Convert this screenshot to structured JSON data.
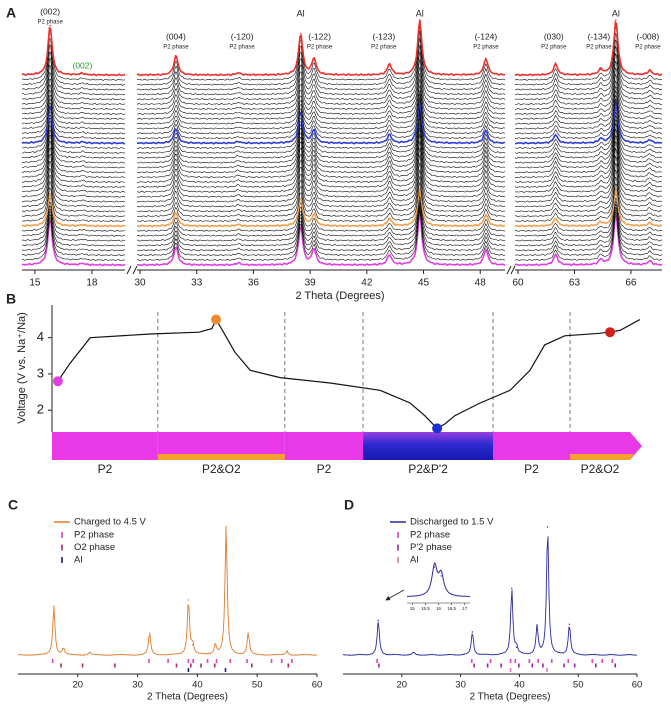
{
  "chart_data": [
    {
      "type": "waterfall",
      "label": "A",
      "xlabel": "2 Theta (Degrees)",
      "segments": [
        {
          "xlim": [
            14.32,
            19.74
          ],
          "xticks": [
            15,
            18
          ]
        },
        {
          "xlim": [
            29.84,
            49.31
          ],
          "xticks": [
            30,
            33,
            36,
            39,
            42,
            45,
            48
          ]
        },
        {
          "xlim": [
            59.84,
            67.65
          ],
          "xticks": [
            60,
            63,
            66
          ]
        }
      ],
      "peaks": {
        "x": [
          15.8,
          17.5,
          31.9,
          35.2,
          38.5,
          39.2,
          43.2,
          44.8,
          48.3,
          62.0,
          64.4,
          65.2,
          67.0
        ],
        "values": [
          0.9,
          0.03,
          0.35,
          0.04,
          0.75,
          0.3,
          0.2,
          1.0,
          0.3,
          0.2,
          0.1,
          1.0,
          0.08
        ]
      },
      "scan_count": 40,
      "highlights": [
        {
          "index": 0,
          "color": "#e8322e"
        },
        {
          "index": 14,
          "color": "#2f3fd6"
        },
        {
          "index": 31,
          "color": "#f0a050"
        },
        {
          "index": 39,
          "color": "#e040e0"
        }
      ],
      "peak_labels": [
        {
          "x": 15.8,
          "text": "(002)",
          "sub": "P2 phase"
        },
        {
          "x": 31.9,
          "text": "(004)",
          "sub": "P2 phase"
        },
        {
          "x": 35.4,
          "text": "(-120)",
          "sub": "P2 phase"
        },
        {
          "x": 39.5,
          "text": "(-122)",
          "sub": "P2 phase"
        },
        {
          "x": 42.9,
          "text": "(-123)",
          "sub": "P2 phase"
        },
        {
          "x": 48.3,
          "text": "(-124)",
          "sub": "P2 phase"
        },
        {
          "x": 61.9,
          "text": "(030)",
          "sub": "P2 phase"
        },
        {
          "x": 64.3,
          "text": "(-134)",
          "sub": "P2 phase"
        },
        {
          "x": 66.9,
          "text": "(-008)",
          "sub": "P2 phase"
        }
      ],
      "al_labels": [
        {
          "x": 38.5,
          "text": "Al"
        },
        {
          "x": 44.8,
          "text": "Al"
        },
        {
          "x": 65.2,
          "text": "Al"
        }
      ],
      "extra_label": {
        "x": 17.5,
        "text": "(002)",
        "color": "#2a9a2a"
      }
    },
    {
      "type": "line",
      "label": "B",
      "ylabel": "Voltage (V vs. Na⁺/Na)",
      "xlim": [
        0,
        100
      ],
      "ylim": [
        1.4,
        4.9
      ],
      "yticks": [
        2,
        3,
        4
      ],
      "x": [
        1.0,
        3.1,
        6.5,
        16.7,
        25.0,
        27.2,
        27.9,
        29.0,
        31.1,
        33.7,
        38.8,
        47.3,
        55.8,
        60.9,
        63.4,
        64.6,
        65.5,
        66.8,
        68.5,
        72.8,
        77.9,
        81.3,
        83.8,
        87.2,
        93.2,
        96.6,
        100
      ],
      "values": [
        2.8,
        3.3,
        4.0,
        4.1,
        4.15,
        4.25,
        4.5,
        4.2,
        3.6,
        3.1,
        2.9,
        2.75,
        2.55,
        2.2,
        1.85,
        1.65,
        1.5,
        1.62,
        1.85,
        2.2,
        2.55,
        3.1,
        3.8,
        4.05,
        4.12,
        4.2,
        4.5
      ],
      "color": "#111111",
      "markers": [
        {
          "x": 1.0,
          "y": 2.8,
          "color": "#e040e0"
        },
        {
          "x": 27.9,
          "y": 4.5,
          "color": "#f08a30"
        },
        {
          "x": 65.5,
          "y": 1.5,
          "color": "#2030d0"
        },
        {
          "x": 94.9,
          "y": 4.15,
          "color": "#d02020"
        }
      ],
      "phases": [
        {
          "name": "P2",
          "from": 0,
          "to": 18.0,
          "color": "#e838e8"
        },
        {
          "name": "P2&O2",
          "from": 18.0,
          "to": 39.6,
          "color": "#e838e8",
          "strip": "#f5a030"
        },
        {
          "name": "P2",
          "from": 39.6,
          "to": 52.9,
          "color": "#e838e8"
        },
        {
          "name": "P2&P'2",
          "from": 52.9,
          "to": 75.0,
          "color": "#1c1cc0"
        },
        {
          "name": "P2",
          "from": 75.0,
          "to": 88.1,
          "color": "#e838e8"
        },
        {
          "name": "P2&O2",
          "from": 88.1,
          "to": 98.3,
          "color": "#e838e8",
          "strip": "#f5a030"
        }
      ]
    },
    {
      "type": "xrd",
      "label": "C",
      "xlabel": "2 Theta (Degrees)",
      "xlim": [
        10,
        60
      ],
      "xticks": [
        20,
        30,
        40,
        50,
        60
      ],
      "series": [
        {
          "name": "Charged to 4.5 V",
          "color": "#e07b2a",
          "x": [
            16.0,
            17.6,
            22.0,
            32.0,
            38.5,
            39.2,
            43.0,
            44.8,
            48.5,
            55.0
          ],
          "values": [
            38,
            5,
            2,
            17,
            43,
            8,
            8,
            100,
            17,
            3
          ]
        }
      ],
      "references": [
        {
          "name": "P2 phase",
          "color": "#e040c0",
          "positions": [
            15.8,
            31.9,
            35.1,
            38.5,
            39.3,
            41.7,
            43.2,
            45.5,
            48.3,
            52.4,
            54.1,
            55.8
          ]
        },
        {
          "name": "O2 phase",
          "color": "#b02870",
          "positions": [
            17.2,
            20.8,
            26.2,
            36.5,
            38.9,
            40.6,
            42.9,
            49.1,
            55.2
          ]
        },
        {
          "name": "Al",
          "color": "#202080",
          "positions": [
            38.5,
            44.7
          ]
        }
      ]
    },
    {
      "type": "xrd",
      "label": "D",
      "xlabel": "2 Theta (Degrees)",
      "xlim": [
        10,
        60
      ],
      "xticks": [
        20,
        30,
        40,
        50,
        60
      ],
      "series": [
        {
          "name": "Discharged to 1.5 V",
          "color": "#2a2aa0",
          "x": [
            16.0,
            22.0,
            32.0,
            38.7,
            39.5,
            43.0,
            44.8,
            48.5
          ],
          "values": [
            27,
            2,
            18,
            52,
            6,
            22,
            100,
            24
          ]
        }
      ],
      "references": [
        {
          "name": "P2 phase",
          "color": "#e040c0",
          "positions": [
            15.8,
            31.9,
            35.1,
            38.5,
            39.3,
            41.7,
            43.2,
            45.5,
            48.3,
            52.4,
            54.1,
            55.8
          ]
        },
        {
          "name": "P'2 phase",
          "color": "#8a2a9a",
          "positions": [
            16.1,
            32.3,
            34.6,
            36.9,
            39.9,
            42.2,
            44.0,
            47.6,
            49.4,
            53.0,
            56.3
          ]
        },
        {
          "name": "Al",
          "color": "#f070c0",
          "positions": [
            38.5,
            44.7
          ]
        }
      ],
      "inset": {
        "xlim": [
          14.8,
          17.2
        ],
        "xticks": [
          15,
          15.5,
          16,
          16.5,
          17
        ],
        "x": [
          15.85,
          16.1
        ],
        "values": [
          100,
          70
        ]
      }
    }
  ]
}
